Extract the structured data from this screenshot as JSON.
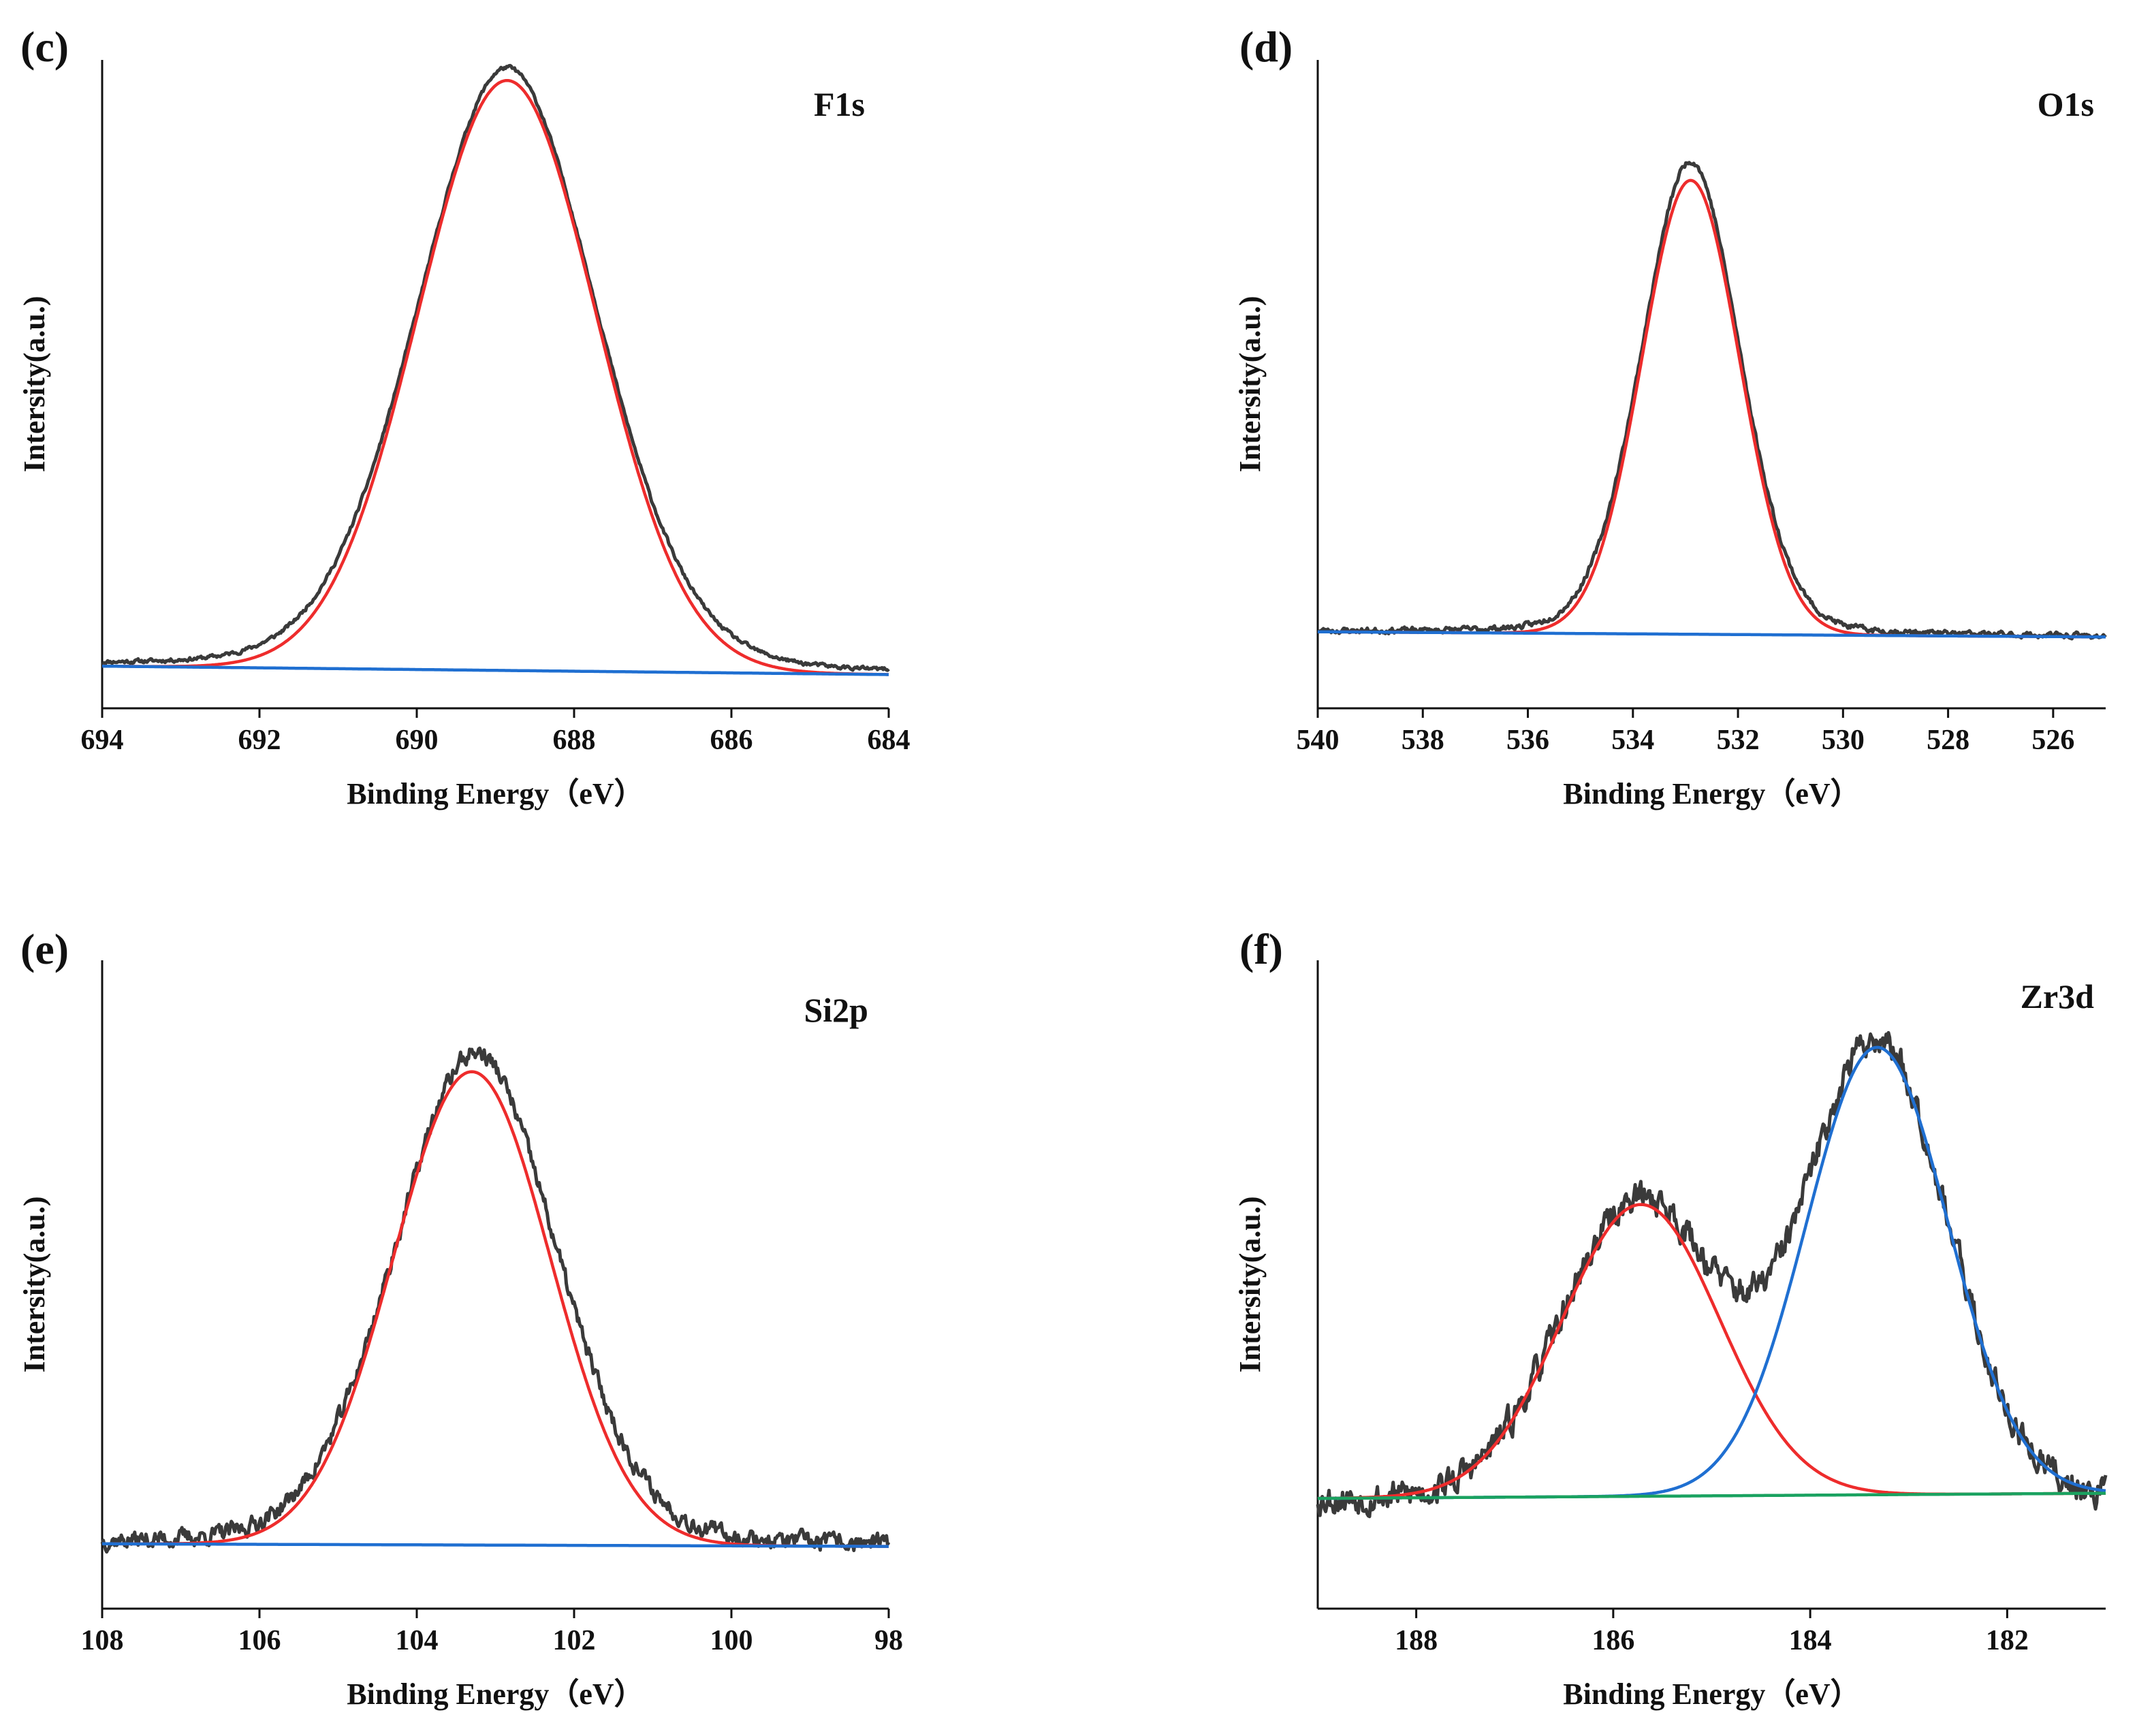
{
  "chart_data": [
    {
      "type": "line",
      "panel": "(c)",
      "label": "F1s",
      "xlabel": "Binding Energy（eV）",
      "ylabel": "Intersity(a.u.)",
      "xlim": [
        694,
        684
      ],
      "xticks": [
        "694",
        "692",
        "690",
        "688",
        "686",
        "684"
      ],
      "ylim": [
        0,
        100
      ],
      "series": [
        {
          "name": "raw",
          "color": "#3a3a3a",
          "baseline": [
            6.5,
            5.2
          ],
          "peaks": [
            {
              "center": 688.85,
              "height": 93,
              "sigma": 1.16,
              "shape": "voigt"
            }
          ],
          "noise": 0.25,
          "seed": 11
        },
        {
          "name": "fit",
          "color": "#ee2c2c",
          "baseline": [
            6.5,
            5.2
          ],
          "peaks": [
            {
              "center": 688.85,
              "height": 91,
              "sigma": 1.13
            }
          ],
          "noise": 0
        },
        {
          "name": "background",
          "color": "#1f6fd1",
          "baseline": [
            6.5,
            5.2
          ],
          "peaks": [],
          "noise": 0
        }
      ]
    },
    {
      "type": "line",
      "panel": "(d)",
      "label": "O1s",
      "xlabel": "Binding Energy（eV）",
      "ylabel": "Intersity(a.u.)",
      "xlim": [
        540,
        525
      ],
      "xticks": [
        "540",
        "538",
        "536",
        "534",
        "532",
        "530",
        "528",
        "526"
      ],
      "ylim": [
        0,
        100
      ],
      "series": [
        {
          "name": "raw",
          "color": "#3a3a3a",
          "baseline": [
            11.8,
            11.0
          ],
          "peaks": [
            {
              "center": 532.9,
              "height": 73,
              "sigma": 0.95,
              "shape": "voigt"
            }
          ],
          "noise": 0.35,
          "seed": 23
        },
        {
          "name": "fit",
          "color": "#ee2c2c",
          "baseline": [
            11.8,
            11.0
          ],
          "peaks": [
            {
              "center": 532.9,
              "height": 70,
              "sigma": 0.93
            }
          ],
          "noise": 0
        },
        {
          "name": "background",
          "color": "#1f6fd1",
          "baseline": [
            11.8,
            11.0
          ],
          "peaks": [],
          "noise": 0
        }
      ]
    },
    {
      "type": "line",
      "panel": "(e)",
      "label": "Si2p",
      "xlabel": "Binding Energy（eV）",
      "ylabel": "Intersity(a.u.)",
      "xlim": [
        108,
        98
      ],
      "xticks": [
        "108",
        "106",
        "104",
        "102",
        "100",
        "98"
      ],
      "ylim": [
        0,
        100
      ],
      "series": [
        {
          "name": "raw",
          "color": "#3a3a3a",
          "baseline": [
            10.0,
            9.6
          ],
          "peaks": [
            {
              "center": 103.25,
              "height": 76,
              "sigma": 1.05,
              "shape": "voigt"
            }
          ],
          "noise": 1.1,
          "seed": 37
        },
        {
          "name": "fit",
          "color": "#ee2c2c",
          "baseline": [
            10.0,
            9.6
          ],
          "peaks": [
            {
              "center": 103.3,
              "height": 73,
              "sigma": 1.0
            }
          ],
          "noise": 0
        },
        {
          "name": "background",
          "color": "#1f6fd1",
          "baseline": [
            10.0,
            9.6
          ],
          "peaks": [],
          "noise": 0
        }
      ]
    },
    {
      "type": "line",
      "panel": "(f)",
      "label": "Zr3d",
      "xlabel": "Binding Energy（eV）",
      "ylabel": "Intersity(a.u.)",
      "xlim": [
        189,
        181
      ],
      "xticks": [
        "188",
        "186",
        "184",
        "182"
      ],
      "ylim": [
        0,
        100
      ],
      "series": [
        {
          "name": "raw",
          "color": "#3a3a3a",
          "baseline": [
            17.0,
            17.8
          ],
          "peaks": [
            {
              "center": 185.72,
              "height": 46,
              "sigma": 0.8
            },
            {
              "center": 183.32,
              "height": 70,
              "sigma": 0.72
            }
          ],
          "noise": 1.9,
          "seed": 53
        },
        {
          "name": "fit-peak-1",
          "color": "#ee2c2c",
          "baseline": [
            17.0,
            17.8
          ],
          "peaks": [
            {
              "center": 185.72,
              "height": 45,
              "sigma": 0.8
            }
          ],
          "noise": 0
        },
        {
          "name": "fit-peak-2",
          "color": "#1f6fd1",
          "baseline": [
            17.0,
            17.8
          ],
          "peaks": [
            {
              "center": 183.32,
              "height": 69,
              "sigma": 0.72
            }
          ],
          "noise": 0
        },
        {
          "name": "background",
          "color": "#1aa260",
          "baseline": [
            17.0,
            17.8
          ],
          "peaks": [],
          "noise": 0
        }
      ]
    }
  ]
}
